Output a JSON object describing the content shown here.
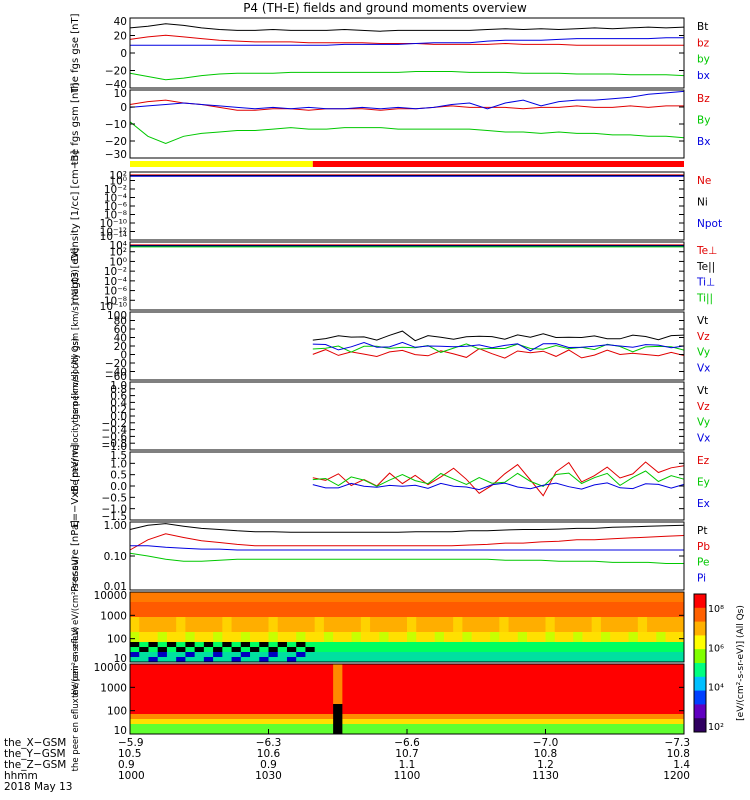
{
  "title": "P4 (TH-E) fields and ground moments overview",
  "chart_data": [
    {
      "id": "fgs",
      "type": "line",
      "ylabel": "the fgs gse [nT]",
      "yticks": [
        "40",
        "20",
        "0",
        "−20",
        "−40"
      ],
      "ylim": [
        -40,
        45
      ],
      "series": [
        {
          "name": "Bt",
          "color": "#000000",
          "values": [
            33,
            35,
            38,
            36,
            33,
            31,
            30,
            30,
            31,
            30,
            30,
            30,
            31,
            30,
            29,
            30,
            30,
            30,
            30,
            30,
            31,
            32,
            31,
            32,
            31,
            32,
            33,
            32,
            33,
            34,
            33,
            34
          ]
        },
        {
          "name": "bz",
          "color": "#e00000",
          "values": [
            19,
            22,
            24,
            22,
            20,
            18,
            17,
            16,
            16,
            16,
            15,
            15,
            15,
            15,
            14,
            14,
            14,
            13,
            13,
            13,
            13,
            14,
            13,
            13,
            13,
            12,
            12,
            12,
            12,
            12,
            12,
            12
          ]
        },
        {
          "name": "by",
          "color": "#00c800",
          "values": [
            -22,
            -26,
            -30,
            -28,
            -25,
            -23,
            -22,
            -22,
            -22,
            -21,
            -21,
            -21,
            -21,
            -21,
            -21,
            -21,
            -20,
            -20,
            -20,
            -21,
            -21,
            -21,
            -22,
            -22,
            -22,
            -23,
            -23,
            -23,
            -24,
            -24,
            -24,
            -25
          ]
        },
        {
          "name": "bx",
          "color": "#0000e0",
          "values": [
            12,
            12,
            12,
            12,
            12,
            12,
            12,
            12,
            12,
            12,
            12,
            12,
            13,
            13,
            13,
            13,
            14,
            15,
            15,
            15,
            17,
            18,
            18,
            18,
            19,
            20,
            20,
            20,
            20,
            20,
            21,
            21
          ]
        }
      ]
    },
    {
      "id": "fgs_gsm",
      "type": "line",
      "ylabel": "the fgs gsm [nT]",
      "yticks": [
        "10",
        "0",
        "−10",
        "−20",
        "−30"
      ],
      "ylim": [
        -35,
        12
      ],
      "series": [
        {
          "name": "Bz",
          "color": "#e00000",
          "values": [
            2,
            4,
            5,
            3,
            2,
            0,
            -2,
            -2,
            -1,
            -1,
            -2,
            -1,
            -1,
            -1,
            -2,
            -1,
            -1,
            0,
            1,
            0,
            0,
            0,
            -1,
            0,
            0,
            1,
            0,
            0,
            1,
            0,
            1,
            1
          ]
        },
        {
          "name": "By",
          "color": "#00c800",
          "values": [
            -10,
            -20,
            -25,
            -20,
            -18,
            -17,
            -16,
            -16,
            -15,
            -14,
            -15,
            -15,
            -14,
            -14,
            -14,
            -15,
            -15,
            -15,
            -15,
            -15,
            -16,
            -17,
            -17,
            -18,
            -17,
            -18,
            -18,
            -19,
            -19,
            -20,
            -20,
            -21
          ]
        },
        {
          "name": "Bx",
          "color": "#0000e0",
          "values": [
            0,
            1,
            2,
            3,
            2,
            1,
            0,
            -1,
            0,
            -1,
            0,
            -1,
            -1,
            0,
            -1,
            0,
            -1,
            0,
            2,
            3,
            -1,
            3,
            5,
            1,
            4,
            5,
            5,
            6,
            7,
            9,
            10,
            11
          ]
        }
      ]
    },
    {
      "id": "density",
      "type": "line",
      "ylabel": "Density [1/cc] [cm−3]",
      "yticks": [
        "10²",
        "10⁰",
        "10⁻²",
        "10⁻⁴",
        "10⁻⁶",
        "10⁻⁸",
        "10⁻¹⁰",
        "10⁻¹²",
        "10⁻¹⁴"
      ],
      "series": [
        {
          "name": "Ne",
          "color": "#e00000"
        },
        {
          "name": "Ni",
          "color": "#000000"
        },
        {
          "name": "Npot",
          "color": "#0000e0"
        }
      ]
    },
    {
      "id": "temperature",
      "type": "line",
      "ylabel": "magt3 [eV]",
      "yticks": [
        "10⁴",
        "10²",
        "10⁰",
        "10⁻²",
        "10⁻⁴",
        "10⁻⁶",
        "10⁻⁸",
        "10⁻¹⁰"
      ],
      "series": [
        {
          "name": "Te⊥",
          "color": "#e00000"
        },
        {
          "name": "Te||",
          "color": "#000000"
        },
        {
          "name": "Ti⊥",
          "color": "#0000e0"
        },
        {
          "name": "Ti||",
          "color": "#00c800"
        }
      ]
    },
    {
      "id": "peir_velocity",
      "type": "line",
      "ylabel": "the peir velocity gsm [km/s] (All Qs)",
      "yticks": [
        "100",
        "80",
        "60",
        "40",
        "20",
        "0",
        "−20",
        "−40",
        "−60"
      ],
      "ylim": [
        -60,
        100
      ],
      "start_fraction": 0.33,
      "series": [
        {
          "name": "Vt",
          "color": "#000000",
          "values": [
            35,
            40,
            42,
            38,
            45,
            36,
            40,
            55,
            38,
            42,
            36,
            40,
            44,
            38,
            42,
            40,
            45,
            38,
            50,
            42,
            40,
            38,
            44,
            40,
            36,
            42,
            45,
            38,
            40,
            44
          ]
        },
        {
          "name": "Vz",
          "color": "#e00000",
          "values": [
            5,
            8,
            -5,
            10,
            2,
            -8,
            6,
            12,
            0,
            -5,
            8,
            4,
            -6,
            10,
            2,
            -4,
            6,
            0,
            12,
            -2,
            5,
            -8,
            4,
            8,
            -4,
            6,
            2,
            -6,
            4,
            0
          ]
        },
        {
          "name": "Vy",
          "color": "#00c800",
          "values": [
            15,
            12,
            18,
            10,
            20,
            14,
            16,
            22,
            12,
            18,
            10,
            16,
            20,
            14,
            18,
            12,
            22,
            16,
            14,
            20,
            12,
            18,
            14,
            22,
            16,
            10,
            20,
            14,
            18,
            16
          ]
        },
        {
          "name": "Vx",
          "color": "#0000e0",
          "values": [
            20,
            22,
            15,
            18,
            25,
            18,
            20,
            28,
            15,
            20,
            22,
            18,
            16,
            24,
            20,
            18,
            22,
            14,
            26,
            20,
            18,
            22,
            16,
            20,
            24,
            18,
            20,
            22,
            18,
            20
          ]
        }
      ]
    },
    {
      "id": "peer_velocity",
      "type": "line",
      "ylabel": "the peer velocity gsm [km/s] (All Qs)",
      "yticks": [
        "1.0",
        "0.8",
        "0.6",
        "0.4",
        "0.2",
        "0.0",
        "−0.2",
        "−0.4",
        "−0.6",
        "−0.8",
        "−1.0"
      ],
      "ylim": [
        -1,
        1
      ],
      "series": [
        {
          "name": "Vt",
          "color": "#000000"
        },
        {
          "name": "Vz",
          "color": "#e00000"
        },
        {
          "name": "Vy",
          "color": "#00c800"
        },
        {
          "name": "Vx",
          "color": "#0000e0"
        }
      ]
    },
    {
      "id": "efield",
      "type": "line",
      "ylabel": "E=−VxB [mV/m]",
      "yticks": [
        "1.5",
        "1.0",
        "0.5",
        "0.0",
        "−0.5",
        "−1.0",
        "−1.5"
      ],
      "ylim": [
        -1.5,
        1.5
      ],
      "start_fraction": 0.33,
      "series": [
        {
          "name": "Ez",
          "color": "#e00000",
          "values": [
            0.4,
            0.2,
            0.5,
            0.1,
            0.3,
            -0.1,
            0.6,
            0.2,
            0.4,
            0.0,
            0.5,
            0.8,
            0.2,
            -0.3,
            0.1,
            0.5,
            0.9,
            0.3,
            -0.4,
            0.6,
            1.0,
            0.2,
            0.5,
            0.8,
            0.3,
            0.6,
            1.1,
            0.5,
            0.8,
            1.0
          ]
        },
        {
          "name": "Ey",
          "color": "#00c800",
          "values": [
            0.2,
            0.3,
            0.1,
            0.4,
            0.2,
            0.0,
            0.3,
            0.5,
            0.2,
            0.1,
            0.6,
            0.3,
            0.0,
            0.4,
            0.2,
            0.1,
            0.5,
            0.3,
            0.0,
            0.4,
            0.6,
            0.2,
            0.3,
            0.5,
            0.1,
            0.4,
            0.6,
            0.2,
            0.5,
            0.3
          ]
        },
        {
          "name": "Ex",
          "color": "#0000e0",
          "values": [
            0.0,
            -0.1,
            0.0,
            0.1,
            -0.1,
            0.0,
            0.1,
            -0.1,
            0.0,
            0.0,
            0.1,
            -0.1,
            0.0,
            -0.1,
            0.0,
            0.1,
            0.0,
            -0.1,
            0.0,
            0.1,
            0.0,
            -0.1,
            0.0,
            0.1,
            0.0,
            -0.1,
            0.0,
            0.1,
            0.0,
            0.0
          ]
        }
      ]
    },
    {
      "id": "pressure",
      "type": "line",
      "ylabel": "Pressure [nPa]",
      "yticks": [
        "1.00",
        "0.10",
        "0.01"
      ],
      "scale": "log",
      "ylim": [
        0.01,
        1.0
      ],
      "series": [
        {
          "name": "Pt",
          "color": "#000000",
          "values": [
            0.6,
            0.8,
            0.9,
            0.75,
            0.65,
            0.6,
            0.55,
            0.52,
            0.52,
            0.5,
            0.5,
            0.5,
            0.5,
            0.5,
            0.5,
            0.5,
            0.52,
            0.52,
            0.52,
            0.55,
            0.55,
            0.58,
            0.6,
            0.6,
            0.62,
            0.65,
            0.65,
            0.7,
            0.72,
            0.75,
            0.78,
            0.8
          ]
        },
        {
          "name": "Pb",
          "color": "#e00000",
          "values": [
            0.15,
            0.3,
            0.45,
            0.35,
            0.28,
            0.25,
            0.22,
            0.2,
            0.2,
            0.2,
            0.2,
            0.2,
            0.2,
            0.2,
            0.2,
            0.2,
            0.2,
            0.2,
            0.2,
            0.21,
            0.22,
            0.24,
            0.24,
            0.26,
            0.27,
            0.3,
            0.3,
            0.32,
            0.34,
            0.36,
            0.38,
            0.4
          ]
        },
        {
          "name": "Pe",
          "color": "#00c800",
          "values": [
            0.12,
            0.1,
            0.08,
            0.07,
            0.07,
            0.075,
            0.08,
            0.08,
            0.08,
            0.08,
            0.08,
            0.08,
            0.08,
            0.08,
            0.08,
            0.08,
            0.08,
            0.08,
            0.08,
            0.08,
            0.08,
            0.075,
            0.075,
            0.075,
            0.07,
            0.07,
            0.07,
            0.065,
            0.065,
            0.065,
            0.06,
            0.06
          ]
        },
        {
          "name": "Pi",
          "color": "#0000e0",
          "values": [
            0.2,
            0.2,
            0.18,
            0.17,
            0.16,
            0.16,
            0.15,
            0.15,
            0.15,
            0.15,
            0.15,
            0.15,
            0.15,
            0.15,
            0.15,
            0.15,
            0.15,
            0.15,
            0.15,
            0.15,
            0.15,
            0.15,
            0.15,
            0.15,
            0.15,
            0.15,
            0.15,
            0.15,
            0.15,
            0.15,
            0.15,
            0.15
          ]
        }
      ]
    },
    {
      "id": "peir_spectrogram",
      "type": "heatmap",
      "ylabel": "the peir en eflux eV/(cm²-s-sr-eV)",
      "yticks": [
        "10000",
        "1000",
        "100",
        "10"
      ]
    },
    {
      "id": "peer_spectrogram",
      "type": "heatmap",
      "ylabel": "the peer en eflux eV/(cm²-s-sr-eV)",
      "yticks": [
        "10000",
        "1000",
        "100",
        "10"
      ]
    }
  ],
  "colorbar": {
    "label": "[eV/(cm²-s-sr-eV)] (All Qs)",
    "ticks": [
      "10⁸",
      "10⁶",
      "10⁴",
      "10²"
    ]
  },
  "x_axis": {
    "row_labels": [
      "the_X−GSM",
      "the_Y−GSM",
      "the_Z−GSM",
      "hhmm",
      "2018 May 13"
    ],
    "columns": [
      [
        "−5.9",
        "10.5",
        "0.9",
        "1000"
      ],
      [
        "−6.3",
        "10.6",
        "0.9",
        "1030"
      ],
      [
        "−6.6",
        "10.7",
        "1.1",
        "1100"
      ],
      [
        "−7.0",
        "10.8",
        "1.2",
        "1130"
      ],
      [
        "−7.3",
        "10.8",
        "1.4",
        "1200"
      ]
    ]
  }
}
